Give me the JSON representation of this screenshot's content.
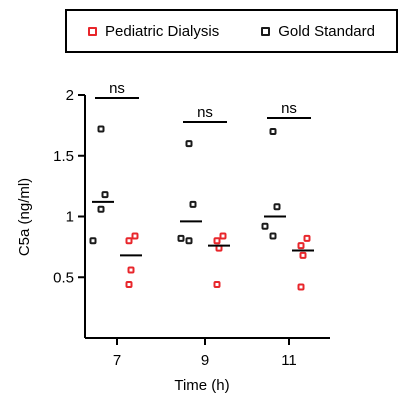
{
  "chart_data": {
    "type": "scatter",
    "title": "",
    "xlabel": "Time (h)",
    "ylabel": "C5a (ng/ml)",
    "ylim": [
      0,
      2
    ],
    "yticks": [
      "0.5",
      "1",
      "1.5",
      "2"
    ],
    "yticks_values": [
      0.5,
      1,
      1.5,
      2
    ],
    "categories": [
      "7",
      "9",
      "11"
    ],
    "legend_position": "top",
    "grid": false,
    "series": [
      {
        "name": "Pediatric Dialysis",
        "color": "#e8262b",
        "marker": "square-open",
        "points": [
          [
            0.8,
            0.84,
            0.56,
            0.44
          ],
          [
            0.8,
            0.84,
            0.74,
            0.44
          ],
          [
            0.76,
            0.82,
            0.68,
            0.42
          ]
        ],
        "means": [
          0.68,
          0.76,
          0.72
        ]
      },
      {
        "name": "Gold Standard",
        "color": "#1a1a1a",
        "marker": "square-open",
        "points": [
          [
            1.72,
            1.18,
            1.06,
            0.8
          ],
          [
            1.6,
            1.1,
            0.8,
            0.82
          ],
          [
            1.7,
            1.08,
            0.84,
            0.92
          ]
        ],
        "means": [
          1.12,
          0.96,
          1.0
        ]
      }
    ],
    "annotations": [
      {
        "category": "7",
        "text": "ns"
      },
      {
        "category": "9",
        "text": "ns"
      },
      {
        "category": "11",
        "text": "ns"
      }
    ]
  }
}
